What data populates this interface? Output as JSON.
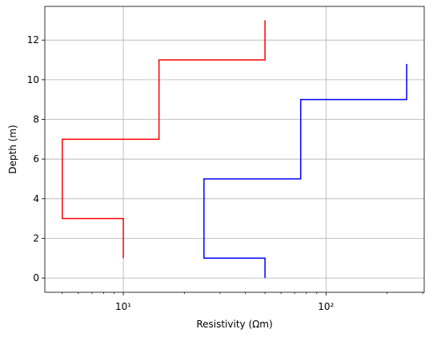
{
  "chart_data": {
    "type": "line",
    "xlabel": "Resistivity (Ωm)",
    "ylabel": "Depth (m)",
    "xscale": "log",
    "grid": true,
    "xlim": [
      4.1,
      305
    ],
    "ylim": [
      -0.72,
      13.7
    ],
    "xticks": [
      {
        "value": 10,
        "label": "10¹"
      },
      {
        "value": 100,
        "label": "10²"
      }
    ],
    "xminorticks": [
      5,
      6,
      7,
      8,
      9,
      20,
      30,
      40,
      50,
      60,
      70,
      80,
      90,
      200,
      300
    ],
    "yticks": [
      0,
      2,
      4,
      6,
      8,
      10,
      12
    ],
    "series": [
      {
        "color": "#ff0000",
        "x": [
          10,
          10,
          5,
          5,
          15,
          15,
          50,
          50
        ],
        "values": [
          1,
          3,
          3,
          7,
          7,
          11,
          11,
          13
        ]
      },
      {
        "color": "#0000ff",
        "x": [
          50,
          50,
          25,
          25,
          75,
          75,
          250,
          250
        ],
        "values": [
          0,
          1,
          1,
          5,
          5,
          9,
          9,
          10.8
        ]
      }
    ]
  }
}
